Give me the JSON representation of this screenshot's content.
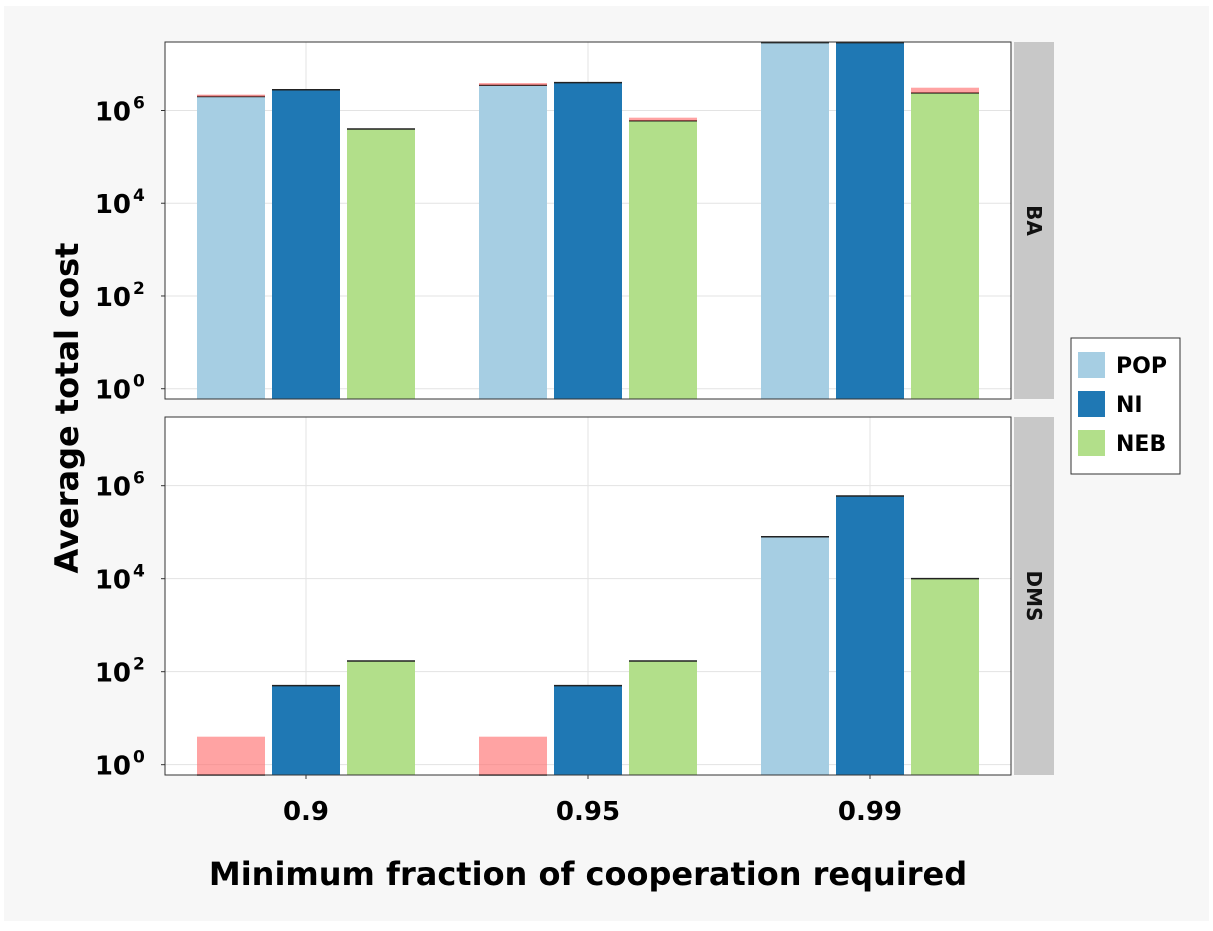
{
  "chart_data": {
    "type": "bar",
    "xlabel": "Minimum fraction of cooperation required",
    "ylabel": "Average total cost",
    "y_scale": "log10",
    "ylim": [
      0.6,
      30000000
    ],
    "y_ticks": [
      {
        "value": 1,
        "base": "10",
        "exp": "0"
      },
      {
        "value": 100,
        "base": "10",
        "exp": "2"
      },
      {
        "value": 10000,
        "base": "10",
        "exp": "4"
      },
      {
        "value": 1000000,
        "base": "10",
        "exp": "6"
      }
    ],
    "categories": [
      "0.9",
      "0.95",
      "0.99"
    ],
    "legend": {
      "position": "right",
      "entries": [
        {
          "name": "POP",
          "color": "#a6cee3"
        },
        {
          "name": "NI",
          "color": "#1f78b4"
        },
        {
          "name": "NEB",
          "color": "#b2df8a"
        }
      ]
    },
    "error_band_color": "#ff6666",
    "facets": [
      {
        "label": "BA",
        "series": [
          {
            "name": "POP",
            "values": [
              2000000,
              3500000,
              29000000
            ]
          },
          {
            "name": "NI",
            "values": [
              2800000,
              4000000,
              29000000
            ]
          },
          {
            "name": "NEB",
            "values": [
              400000,
              600000,
              2400000
            ]
          }
        ],
        "error_bands": [
          {
            "series": "POP",
            "category": "0.9",
            "low": 2000000,
            "high": 2200000
          },
          {
            "series": "POP",
            "category": "0.95",
            "low": 3500000,
            "high": 3900000
          },
          {
            "series": "NEB",
            "category": "0.95",
            "low": 600000,
            "high": 700000
          },
          {
            "series": "NEB",
            "category": "0.99",
            "low": 2400000,
            "high": 3100000
          }
        ]
      },
      {
        "label": "DMS",
        "series": [
          {
            "name": "POP",
            "values": [
              0.6,
              0.6,
              80000
            ]
          },
          {
            "name": "NI",
            "values": [
              50,
              50,
              600000
            ]
          },
          {
            "name": "NEB",
            "values": [
              170,
              170,
              10000
            ]
          }
        ],
        "error_bands": [
          {
            "series": "POP",
            "category": "0.9",
            "low": 0.6,
            "high": 4
          },
          {
            "series": "POP",
            "category": "0.95",
            "low": 0.6,
            "high": 4
          }
        ]
      }
    ]
  }
}
